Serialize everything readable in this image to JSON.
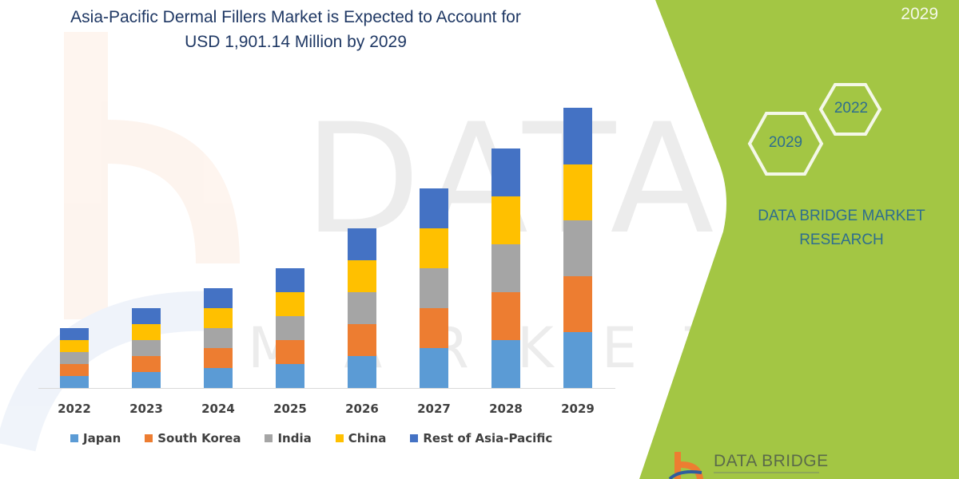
{
  "title": {
    "line1": "Asia-Pacific Dermal Fillers Market is Expected to Account for",
    "line2": "USD 1,901.14 Million by 2029"
  },
  "side_panel": {
    "top_year": "2029",
    "hex_start": "2022",
    "hex_end": "2029",
    "brand_line1": "DATA BRIDGE MARKET",
    "brand_line2": "RESEARCH",
    "footer_logo_text": "DATA BRIDGE",
    "panel_color": "#a3c644"
  },
  "colors": {
    "Japan": "#5b9bd5",
    "South Korea": "#ed7d31",
    "India": "#a5a5a5",
    "China": "#ffc000",
    "Rest of Asia-Pacific": "#4472c4"
  },
  "legend": [
    {
      "label": "Japan",
      "color": "#5b9bd5"
    },
    {
      "label": "South Korea",
      "color": "#ed7d31"
    },
    {
      "label": "India",
      "color": "#a5a5a5"
    },
    {
      "label": "China",
      "color": "#ffc000"
    },
    {
      "label": "Rest of Asia-Pacific",
      "color": "#4472c4"
    }
  ],
  "chart_data": {
    "type": "bar",
    "stacked": true,
    "title": "Asia-Pacific Dermal Fillers Market is Expected to Account for USD 1,901.14 Million by 2029",
    "xlabel": "",
    "ylabel": "",
    "y_axis_shown": false,
    "grid": false,
    "legend_position": "bottom",
    "units_note": "relative segment heights estimated from pixels (no y-axis shown)",
    "categories": [
      "2022",
      "2023",
      "2024",
      "2025",
      "2026",
      "2027",
      "2028",
      "2029"
    ],
    "series": [
      {
        "name": "Japan",
        "values": [
          15,
          20,
          25,
          30,
          40,
          50,
          60,
          70
        ]
      },
      {
        "name": "South Korea",
        "values": [
          15,
          20,
          25,
          30,
          40,
          50,
          60,
          70
        ]
      },
      {
        "name": "India",
        "values": [
          15,
          20,
          25,
          30,
          40,
          50,
          60,
          70
        ]
      },
      {
        "name": "China",
        "values": [
          15,
          20,
          25,
          30,
          40,
          50,
          60,
          70
        ]
      },
      {
        "name": "Rest of Asia-Pacific",
        "values": [
          15,
          20,
          25,
          30,
          40,
          50,
          60,
          71
        ]
      }
    ]
  }
}
